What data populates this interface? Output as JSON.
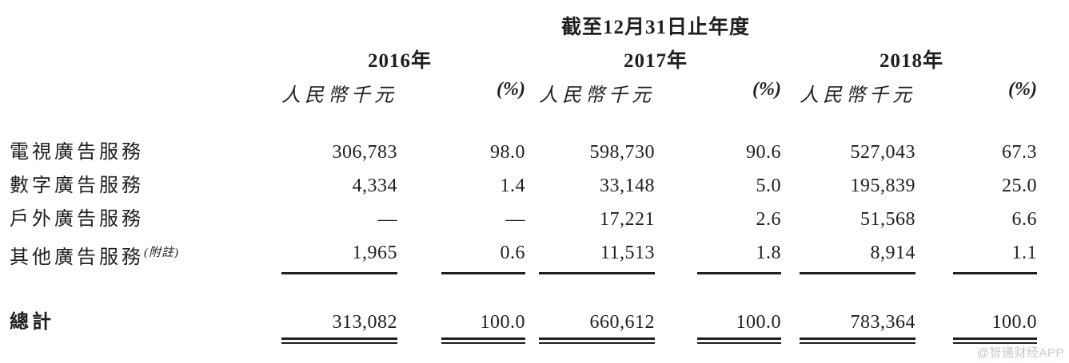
{
  "table": {
    "title": "截至12月31日止年度",
    "years": [
      "2016年",
      "2017年",
      "2018年"
    ],
    "unit_header": "人民幣千元",
    "pct_header": "(%)",
    "rows": [
      {
        "label": "電視廣告服務",
        "note": "",
        "values": [
          "306,783",
          "98.0",
          "598,730",
          "90.6",
          "527,043",
          "67.3"
        ]
      },
      {
        "label": "數字廣告服務",
        "note": "",
        "values": [
          "4,334",
          "1.4",
          "33,148",
          "5.0",
          "195,839",
          "25.0"
        ]
      },
      {
        "label": "戶外廣告服務",
        "note": "",
        "values": [
          "—",
          "—",
          "17,221",
          "2.6",
          "51,568",
          "6.6"
        ]
      },
      {
        "label": "其他廣告服務",
        "note": "(附註)",
        "values": [
          "1,965",
          "0.6",
          "11,513",
          "1.8",
          "8,914",
          "1.1"
        ]
      }
    ],
    "total": {
      "label": "總計",
      "values": [
        "313,082",
        "100.0",
        "660,612",
        "100.0",
        "783,364",
        "100.0"
      ]
    }
  },
  "watermark": "@智通财经APP",
  "colors": {
    "text": "#1e1e1e",
    "rule": "#1f1f1f",
    "watermark": "#c6cacc"
  }
}
